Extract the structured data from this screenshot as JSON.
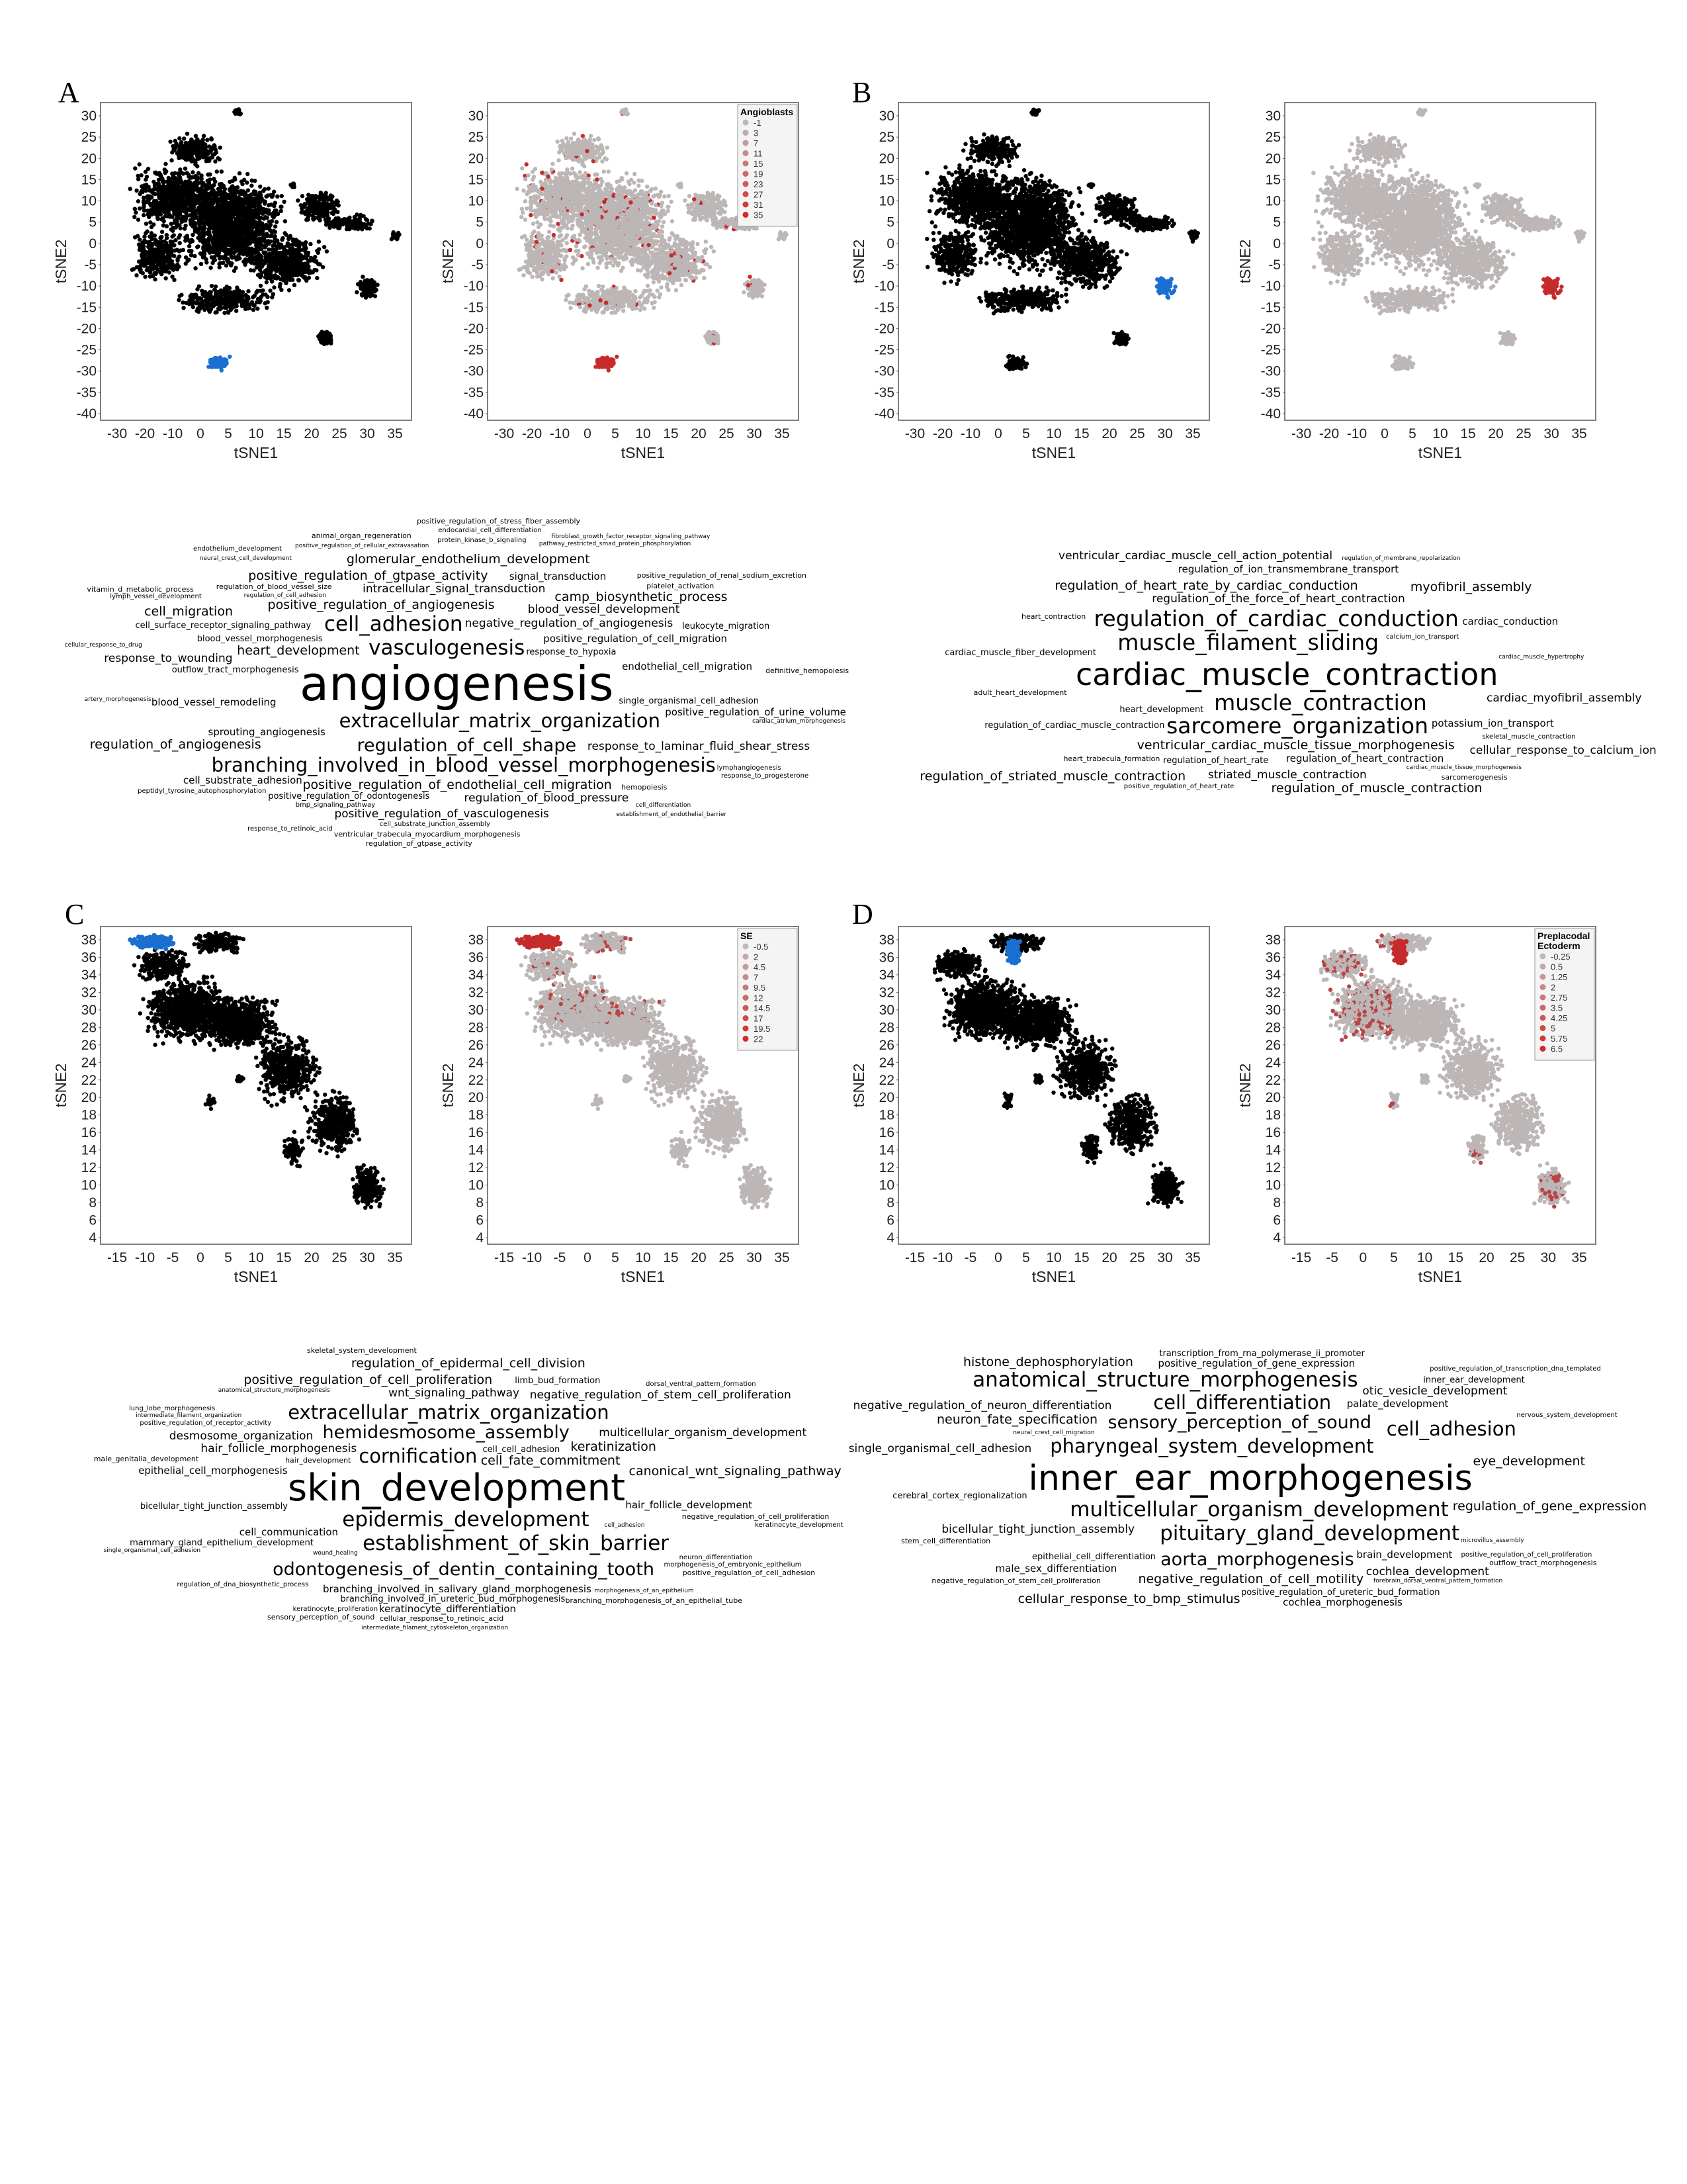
{
  "panels": [
    {
      "letter": "A",
      "plots": [
        {
          "id": "A1",
          "colored": false,
          "xticks": [
            "-30",
            "-20",
            "-10",
            "0",
            "5",
            "10",
            "15",
            "20",
            "25",
            "30",
            "35"
          ],
          "yticks": [
            "30",
            "25",
            "20",
            "15",
            "10",
            "5",
            "0",
            "-5",
            "-10",
            "-15",
            "-20",
            "-25",
            "-30",
            "-35",
            "-40"
          ],
          "xlabel": "tSNE1",
          "ylabel": "tSNE2",
          "legend": null
        },
        {
          "id": "A2",
          "colored": true,
          "xticks": [
            "-30",
            "-20",
            "-10",
            "0",
            "5",
            "10",
            "15",
            "20",
            "25",
            "30",
            "35"
          ],
          "yticks": [
            "30",
            "25",
            "20",
            "15",
            "10",
            "5",
            "0",
            "-5",
            "-10",
            "-15",
            "-20",
            "-25",
            "-30",
            "-35",
            "-40"
          ],
          "xlabel": "tSNE1",
          "ylabel": "tSNE2",
          "legend": {
            "title": [
              "Angioblasts"
            ],
            "values": [
              "-1",
              "3",
              "7",
              "11",
              "15",
              "19",
              "23",
              "27",
              "31",
              "35"
            ]
          }
        }
      ],
      "wordcloud": {
        "dominant": "angiogenesis",
        "large": [
          "vasculogenesis",
          "extracellular_matrix_organization",
          "regulation_of_cell_shape",
          "cell_adhesion",
          "branching_involved_in_blood_vessel_morphogenesis"
        ],
        "medium": [
          "positive_regulation_of_angiogenesis",
          "negative_regulation_of_angiogenesis",
          "positive_regulation_of_cell_migration",
          "response_to_hypoxia",
          "heart_development",
          "intracellular_signal_transduction",
          "sprouting_angiogenesis",
          "outflow_tract_morphogenesis",
          "positive_regulation_of_endothelial_cell_migration",
          "blood_vessel_development",
          "endothelial_cell_migration",
          "single_organismal_cell_adhesion",
          "positive_regulation_of_gtpase_activity",
          "response_to_laminar_fluid_shear_stress",
          "blood_vessel_remodeling",
          "cell_surface_receptor_signaling_pathway",
          "camp_biosynthetic_process",
          "regulation_of_blood_pressure",
          "signal_transduction",
          "blood_vessel_morphogenesis",
          "glomerular_endothelium_development",
          "positive_regulation_of_vasculogenesis",
          "positive_regulation_of_urine_volume",
          "positive_regulation_of_odontogenesis",
          "regulation_of_angiogenesis",
          "response_to_wounding",
          "cell_substrate_adhesion",
          "leukocyte_migration",
          "cell_migration"
        ],
        "small": [
          "regulation_of_blood_vessel_size",
          "bmp_signaling_pathway",
          "regulation_of_cell_adhesion",
          "platelet_activation",
          "cell_substrate_junction_assembly",
          "positive_regulation_of_cellular_extravasation",
          "ventricular_trabecula_myocardium_morphogenesis",
          "protein_kinase_b_signaling",
          "artery_morphogenesis",
          "hemopoiesis",
          "peptidyl_tyrosine_autophosphorylation",
          "cardiac_atrium_morphogenesis",
          "definitive_hemopoiesis",
          "lymph_vessel_development",
          "neural_crest_cell_development",
          "animal_organ_regeneration",
          "endocardial_cell_differentiation",
          "pathway_restricted_smad_protein_phosphorylation",
          "positive_regulation_of_renal_sodium_excretion",
          "response_to_progesterone",
          "establishment_of_endothelial_barrier",
          "regulation_of_gtpase_activity",
          "response_to_retinoic_acid",
          "cellular_response_to_drug",
          "positive_regulation_of_stress_fiber_assembly",
          "lymphangiogenesis",
          "cell_differentiation",
          "vitamin_d_metabolic_process",
          "endothelium_development",
          "fibroblast_growth_factor_receptor_signaling_pathway"
        ]
      }
    },
    {
      "letter": "B",
      "plots": [
        {
          "id": "B1",
          "colored": false,
          "xticks": [
            "-30",
            "-20",
            "-10",
            "0",
            "5",
            "10",
            "15",
            "20",
            "25",
            "30",
            "35"
          ],
          "yticks": [
            "30",
            "25",
            "20",
            "15",
            "10",
            "5",
            "0",
            "-5",
            "-10",
            "-15",
            "-20",
            "-25",
            "-30",
            "-35",
            "-40"
          ],
          "xlabel": "tSNE1",
          "ylabel": "tSNE2",
          "legend": null
        },
        {
          "id": "B2",
          "colored": true,
          "xticks": [
            "-30",
            "-20",
            "-10",
            "0",
            "5",
            "10",
            "15",
            "20",
            "25",
            "30",
            "35"
          ],
          "yticks": [
            "30",
            "25",
            "20",
            "15",
            "10",
            "5",
            "0",
            "-5",
            "-10",
            "-15",
            "-20",
            "-25",
            "-30",
            "-35",
            "-40"
          ],
          "xlabel": "tSNE1",
          "ylabel": "tSNE2",
          "legend": null
        }
      ],
      "wordcloud": {
        "dominant": "cardiac_muscle_contraction",
        "large": [
          "muscle_contraction",
          "muscle_filament_sliding",
          "sarcomere_organization",
          "regulation_of_cardiac_conduction"
        ],
        "medium": [
          "ventricular_cardiac_muscle_tissue_morphogenesis",
          "regulation_of_the_force_of_heart_contraction",
          "regulation_of_heart_contraction",
          "regulation_of_heart_rate",
          "regulation_of_heart_rate_by_cardiac_conduction",
          "striated_muscle_contraction",
          "regulation_of_ion_transmembrane_transport",
          "regulation_of_cardiac_muscle_contraction",
          "regulation_of_muscle_contraction",
          "ventricular_cardiac_muscle_cell_action_potential",
          "potassium_ion_transport",
          "cardiac_muscle_fiber_development",
          "regulation_of_striated_muscle_contraction",
          "cardiac_myofibril_assembly",
          "cardiac_conduction",
          "heart_development",
          "myofibril_assembly",
          "cellular_response_to_calcium_ion"
        ],
        "small": [
          "heart_trabecula_formation",
          "calcium_ion_transport",
          "cardiac_muscle_hypertrophy",
          "adult_heart_development",
          "skeletal_muscle_contraction",
          "cardiac_muscle_tissue_morphogenesis",
          "heart_contraction",
          "positive_regulation_of_heart_rate",
          "regulation_of_membrane_repolarization",
          "sarcomerogenesis"
        ]
      }
    },
    {
      "letter": "C",
      "plots": [
        {
          "id": "C1",
          "colored": false,
          "xticks": [
            "-15",
            "-10",
            "-5",
            "0",
            "5",
            "10",
            "15",
            "20",
            "25",
            "30",
            "35"
          ],
          "yticks": [
            "38",
            "36",
            "34",
            "32",
            "30",
            "28",
            "26",
            "24",
            "22",
            "20",
            "18",
            "16",
            "14",
            "12",
            "10",
            "8",
            "6",
            "4"
          ],
          "xlabel": "tSNE1",
          "ylabel": "tSNE2",
          "legend": null
        },
        {
          "id": "C2",
          "colored": true,
          "xticks": [
            "-15",
            "-10",
            "-5",
            "0",
            "5",
            "10",
            "15",
            "20",
            "25",
            "30",
            "35"
          ],
          "yticks": [
            "38",
            "36",
            "34",
            "32",
            "30",
            "28",
            "26",
            "24",
            "22",
            "20",
            "18",
            "16",
            "14",
            "12",
            "10",
            "8",
            "6",
            "4"
          ],
          "xlabel": "tSNE1",
          "ylabel": "tSNE2",
          "legend": {
            "title": [
              "SE"
            ],
            "values": [
              "-0.5",
              "2",
              "4.5",
              "7",
              "9.5",
              "12",
              "14.5",
              "17",
              "19.5",
              "22"
            ]
          }
        }
      ],
      "wordcloud": {
        "dominant": "skin_development",
        "large": [
          "epidermis_development",
          "cornification",
          "hemidesmosome_assembly",
          "establishment_of_skin_barrier",
          "extracellular_matrix_organization",
          "odontogenesis_of_dentin_containing_tooth"
        ],
        "medium": [
          "cell_fate_commitment",
          "hair_follicle_morphogenesis",
          "cell_communication",
          "cell_cell_adhesion",
          "keratinization",
          "wnt_signaling_pathway",
          "branching_involved_in_salivary_gland_morphogenesis",
          "branching_involved_in_ureteric_bud_morphogenesis",
          "positive_regulation_of_cell_proliferation",
          "multicellular_organism_development",
          "epithelial_cell_morphogenesis",
          "mammary_gland_epithelium_development",
          "regulation_of_epidermal_cell_division",
          "negative_regulation_of_stem_cell_proliferation",
          "hair_follicle_development",
          "bicellular_tight_junction_assembly",
          "canonical_wnt_signaling_pathway",
          "desmosome_organization",
          "keratinocyte_differentiation",
          "limb_bud_formation"
        ],
        "small": [
          "hair_development",
          "positive_regulation_of_receptor_activity",
          "anatomical_structure_morphogenesis",
          "negative_regulation_of_cell_proliferation",
          "neuron_differentiation",
          "morphogenesis_of_an_epithelium",
          "cellular_response_to_retinoic_acid",
          "regulation_of_dna_biosynthetic_process",
          "cell_adhesion",
          "male_genitalia_development",
          "keratinocyte_proliferation",
          "intermediate_filament_organization",
          "branching_morphogenesis_of_an_epithelial_tube",
          "morphogenesis_of_embryonic_epithelium",
          "intermediate_filament_cytoskeleton_organization",
          "sensory_perception_of_sound",
          "lung_lobe_morphogenesis",
          "wound_healing",
          "skeletal_system_development",
          "dorsal_ventral_pattern_formation",
          "single_organismal_cell_adhesion",
          "positive_regulation_of_cell_adhesion",
          "keratinocyte_development"
        ]
      }
    },
    {
      "letter": "D",
      "plots": [
        {
          "id": "D1",
          "colored": false,
          "xticks": [
            "-15",
            "-10",
            "-5",
            "0",
            "5",
            "10",
            "15",
            "20",
            "25",
            "30",
            "35"
          ],
          "yticks": [
            "38",
            "36",
            "34",
            "32",
            "30",
            "28",
            "26",
            "24",
            "22",
            "20",
            "18",
            "16",
            "14",
            "12",
            "10",
            "8",
            "6",
            "4"
          ],
          "xlabel": "tSNE1",
          "ylabel": "tSNE2",
          "legend": null
        },
        {
          "id": "D2",
          "colored": true,
          "xticks": [
            "-15",
            "-5",
            "0",
            "5",
            "10",
            "15",
            "20",
            "25",
            "30",
            "35"
          ],
          "yticks": [
            "38",
            "36",
            "34",
            "32",
            "30",
            "28",
            "26",
            "24",
            "22",
            "20",
            "18",
            "16",
            "14",
            "12",
            "10",
            "8",
            "6",
            "4"
          ],
          "xlabel": "tSNE1",
          "ylabel": "tSNE2",
          "legend": {
            "title": [
              "Preplacodal",
              "Ectoderm"
            ],
            "values": [
              "-0.25",
              "0.5",
              "1.25",
              "2",
              "2.75",
              "3.5",
              "4.25",
              "5",
              "5.75",
              "6.5"
            ]
          }
        }
      ],
      "wordcloud": {
        "dominant": "inner_ear_morphogenesis",
        "large": [
          "multicellular_organism_development",
          "pharyngeal_system_development",
          "sensory_perception_of_sound",
          "pituitary_gland_development",
          "cell_differentiation",
          "aorta_morphogenesis",
          "anatomical_structure_morphogenesis",
          "cell_adhesion"
        ],
        "medium": [
          "negative_regulation_of_cell_motility",
          "bicellular_tight_junction_assembly",
          "palate_development",
          "epithelial_cell_differentiation",
          "neuron_fate_specification",
          "otic_vesicle_development",
          "positive_regulation_of_gene_expression",
          "positive_regulation_of_ureteric_bud_formation",
          "regulation_of_gene_expression",
          "negative_regulation_of_neuron_differentiation",
          "brain_development",
          "transcription_from_rna_polymerase_ii_promoter",
          "cellular_response_to_bmp_stimulus",
          "cochlea_development",
          "male_sex_differentiation",
          "cerebral_cortex_regionalization",
          "eye_development",
          "single_organismal_cell_adhesion",
          "cochlea_morphogenesis",
          "inner_ear_development",
          "histone_dephosphorylation"
        ],
        "small": [
          "negative_regulation_of_stem_cell_proliferation",
          "positive_regulation_of_cell_proliferation",
          "neural_crest_cell_migration",
          "stem_cell_differentiation",
          "nervous_system_development",
          "microvillus_assembly",
          "outflow_tract_morphogenesis",
          "positive_regulation_of_transcription_dna_templated",
          "forebrain_dorsal_ventral_pattern_formation"
        ]
      }
    }
  ],
  "colors": {
    "black_points": "#000000",
    "highlight_blue": "#1a6fd1",
    "grey_points": "#bdb6b6",
    "red_points": "#c62b2b",
    "axis": "#333333"
  }
}
